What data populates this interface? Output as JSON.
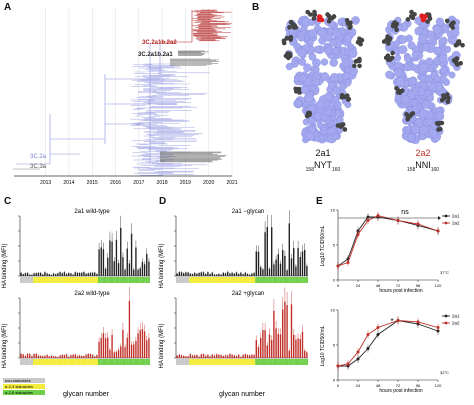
{
  "panels": {
    "a": "A",
    "b": "B",
    "c": "C",
    "d": "D",
    "e": "E"
  },
  "panel_a": {
    "years": [
      "2013",
      "2014",
      "2015",
      "2016",
      "2017",
      "2018",
      "2019",
      "2020",
      "2021"
    ],
    "clade_3c2a1b2a2": "3C.2a1b.2a2",
    "clade_3c2a1b2a1": "3C.2a1b.2a1",
    "clade_3c2a": "3C.2a",
    "clade_3c3a": "3C.3a",
    "colors": {
      "red": "#b22222",
      "blue": "#8b8fe0",
      "gray": "#888888",
      "dark": "#333333"
    }
  },
  "panel_b": {
    "left_name": "2a1",
    "right_name": "2a2",
    "left_seq_pre": "158",
    "left_seq": "NYT",
    "left_seq_post": "160",
    "right_seq_pre": "158",
    "right_seq": "NNI",
    "right_seq_post": "160",
    "colors": {
      "protein": "#a3a8ef",
      "glycan": "#444444",
      "highlight": "#e02020"
    }
  },
  "panel_c": {
    "ylabel": "HA binding (MFI)",
    "xlabel": "glycan number",
    "top_title": "2a1 wild-type",
    "bottom_title": "2a2 wild-type",
    "legend": [
      "non-sialosides",
      "α-2,3 sialosides",
      "α-2,6 sialosides"
    ]
  },
  "panel_d": {
    "ylabel": "HA binding (MFI)",
    "xlabel": "glycan number",
    "top_title": "2a1 −glycan",
    "bottom_title": "2a2 +glycan"
  },
  "panel_e": {
    "ylabel": "Log10 TCID50/mL",
    "xlabel": "hours post infection",
    "ns_label": "ns",
    "star_label": "*",
    "top_temp": "37°C",
    "bottom_temp": "32°C",
    "legend": [
      "2a1",
      "2a2"
    ],
    "xticks": [
      "0",
      "24",
      "48",
      "72",
      "96",
      "120"
    ],
    "yticks": [
      "0",
      "5",
      "10"
    ]
  },
  "chart_data": [
    {
      "type": "line",
      "title": "",
      "xlabel": "hours post infection",
      "ylabel": "Log10 TCID50/mL",
      "x": [
        0,
        12,
        24,
        36,
        48,
        72,
        96,
        120
      ],
      "series": [
        {
          "name": "2a1",
          "values": [
            2.0,
            3.0,
            7.0,
            9.0,
            9.0,
            8.5,
            7.8,
            7.0
          ],
          "color": "#222222"
        },
        {
          "name": "2a2",
          "values": [
            2.0,
            2.5,
            6.5,
            8.5,
            9.2,
            8.5,
            8.0,
            7.0
          ],
          "color": "#c0302a"
        }
      ],
      "ylim": [
        0,
        10
      ],
      "annotation": "37°C"
    },
    {
      "type": "line",
      "title": "",
      "xlabel": "hours post infection",
      "ylabel": "Log10 TCID50/mL",
      "x": [
        0,
        12,
        24,
        36,
        48,
        72,
        96,
        120
      ],
      "series": [
        {
          "name": "2a1",
          "values": [
            2.0,
            2.0,
            3.0,
            4.5,
            6.5,
            8.5,
            8.0,
            7.0
          ],
          "color": "#222222"
        },
        {
          "name": "2a2",
          "values": [
            2.0,
            2.3,
            4.0,
            6.5,
            7.5,
            8.5,
            8.3,
            7.5
          ],
          "color": "#c0302a"
        }
      ],
      "ylim": [
        0,
        10
      ],
      "annotation": "32°C"
    }
  ]
}
